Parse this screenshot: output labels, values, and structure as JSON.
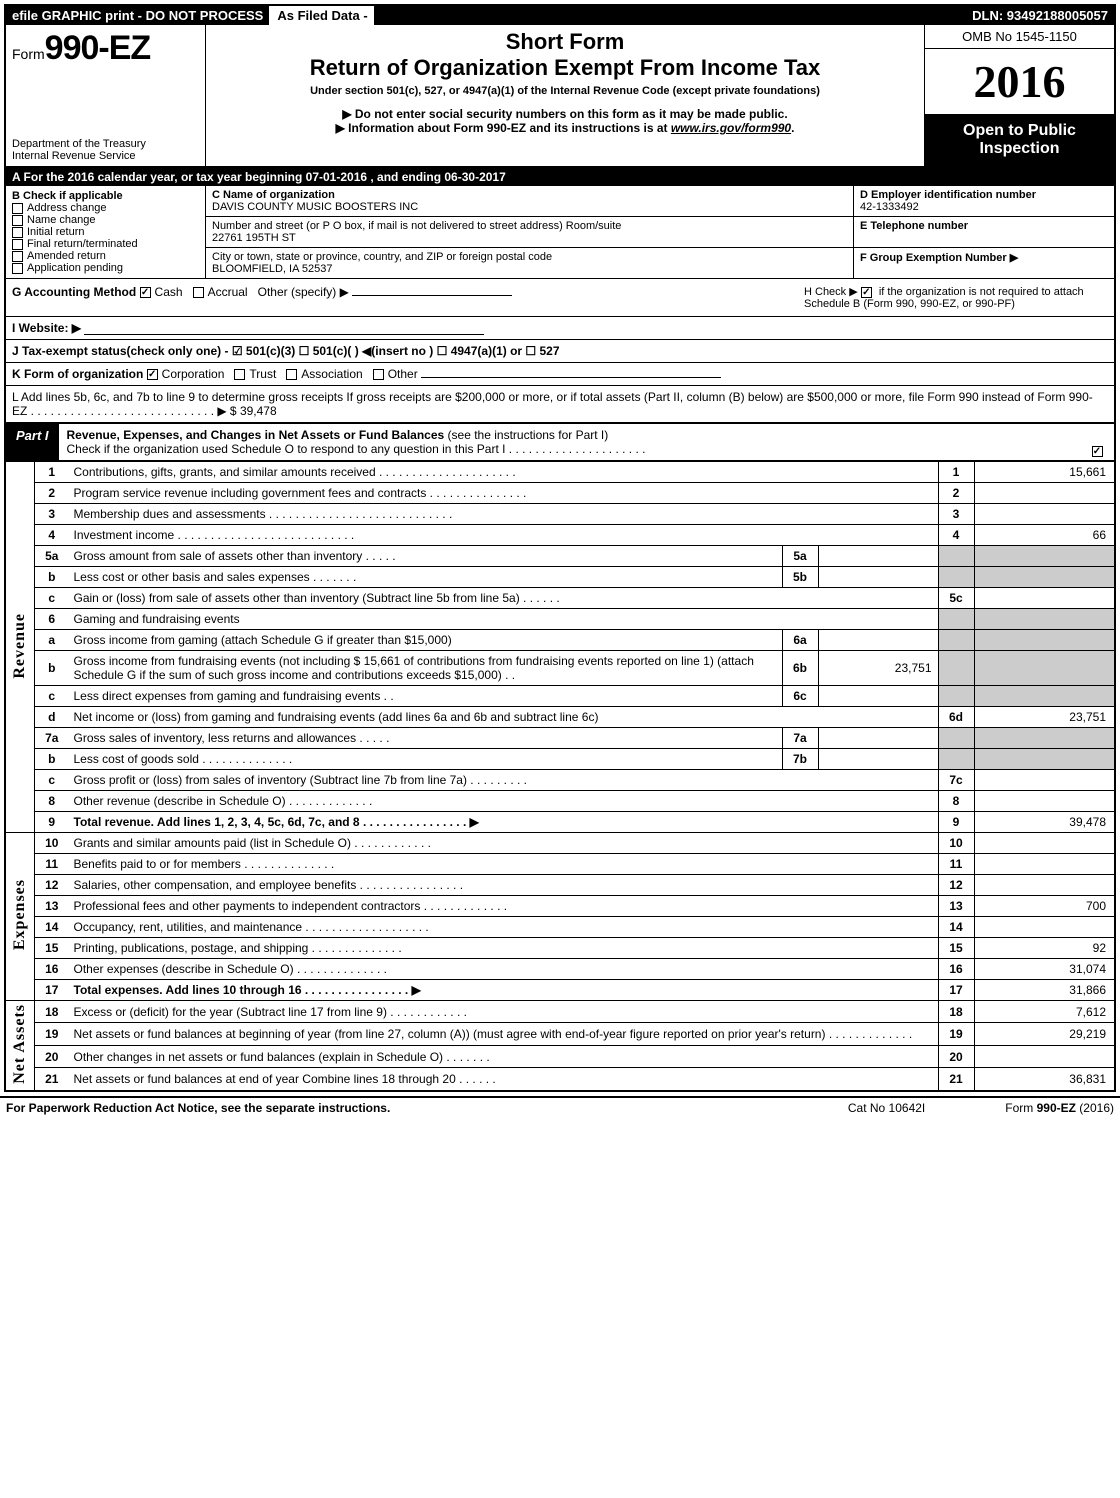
{
  "topbar": {
    "left": "efile GRAPHIC print - DO NOT PROCESS",
    "mid": "As Filed Data -",
    "right": "DLN: 93492188005057"
  },
  "header": {
    "form_prefix": "Form",
    "form_number": "990-EZ",
    "dept1": "Department of the Treasury",
    "dept2": "Internal Revenue Service",
    "short_form": "Short Form",
    "return_title": "Return of Organization Exempt From Income Tax",
    "under": "Under section 501(c), 527, or 4947(a)(1) of the Internal Revenue Code (except private foundations)",
    "note1": "▶ Do not enter social security numbers on this form as it may be made public.",
    "note2_prefix": "▶ Information about Form 990-EZ and its instructions is at ",
    "note2_link": "www.irs.gov/form990",
    "note2_suffix": ".",
    "omb": "OMB No 1545-1150",
    "year": "2016",
    "open": "Open to Public Inspection"
  },
  "rowA": "A  For the 2016 calendar year, or tax year beginning 07-01-2016            , and ending 06-30-2017",
  "colB": {
    "title": "B  Check if applicable",
    "items": [
      "Address change",
      "Name change",
      "Initial return",
      "Final return/terminated",
      "Amended return",
      "Application pending"
    ]
  },
  "colC": {
    "c_label": "C Name of organization",
    "c_name": "DAVIS COUNTY MUSIC BOOSTERS INC",
    "addr_label": "Number and street (or P  O  box, if mail is not delivered to street address)  Room/suite",
    "addr": "22761 195TH ST",
    "city_label": "City or town, state or province, country, and ZIP or foreign postal code",
    "city": "BLOOMFIELD, IA  52537"
  },
  "colD": {
    "d_label": "D Employer identification number",
    "ein": "42-1333492",
    "e_label": "E Telephone number",
    "f_label": "F Group Exemption Number   ▶"
  },
  "rowG": {
    "left_label": "G Accounting Method    ",
    "cash": "Cash",
    "accrual": "Accrual",
    "other": "Other (specify) ▶",
    "h_label": "H   Check ▶   ",
    "h_text": " if the organization is not required to attach Schedule B (Form 990, 990-EZ, or 990-PF)"
  },
  "rowI": "I Website: ▶",
  "rowJ": "J Tax-exempt status(check only one) -  ☑ 501(c)(3)    ☐ 501(c)(  ) ◀(insert no ) ☐ 4947(a)(1) or  ☐ 527",
  "rowK": {
    "label": "K Form of organization   ",
    "corp": "Corporation",
    "trust": "Trust",
    "assoc": "Association",
    "other": "Other"
  },
  "rowL": {
    "text": "L Add lines 5b, 6c, and 7b to line 9 to determine gross receipts  If gross receipts are $200,000 or more, or if total assets (Part II, column (B) below) are $500,000 or more, file Form 990 instead of Form 990-EZ  .  .  .  .  .  .  .  .  .  .  .  .  .  .  .  .  .  .  .  .  .  .  .  .  .  .  .  . ▶ $ ",
    "amt": "39,478"
  },
  "partI": {
    "tag": "Part I",
    "title": "Revenue, Expenses, and Changes in Net Assets or Fund Balances ",
    "sub": "(see the instructions for Part I)",
    "check_note": "Check if the organization used Schedule O to respond to any question in this Part I .  .  .  .  .  .  .  .  .  .  .  .  .  .  .  .  .  .  .  .  ."
  },
  "sections": {
    "revenue": "Revenue",
    "expenses": "Expenses",
    "netassets": "Net Assets"
  },
  "lines": [
    {
      "sec": "rev",
      "ln": "1",
      "desc": "Contributions, gifts, grants, and similar amounts received  .  .  .  .  .  .  .  .  .  .  .  .  .  .  .  .  .  .  .  .  .",
      "out": "1",
      "val": "15,661"
    },
    {
      "sec": "rev",
      "ln": "2",
      "desc": "Program service revenue including government fees and contracts  .  .  .  .  .  .  .  .  .  .  .  .  .  .  .",
      "out": "2",
      "val": ""
    },
    {
      "sec": "rev",
      "ln": "3",
      "desc": "Membership dues and assessments  .  .  .  .  .  .  .  .  .  .  .  .  .  .  .  .  .  .  .  .  .  .  .  .  .  .  .  .",
      "out": "3",
      "val": ""
    },
    {
      "sec": "rev",
      "ln": "4",
      "desc": "Investment income  .  .  .  .  .  .  .  .  .  .  .  .  .  .  .  .  .  .  .  .  .  .  .  .  .  .  .",
      "out": "4",
      "val": "66"
    },
    {
      "sec": "rev",
      "ln": "5a",
      "desc": "Gross amount from sale of assets other than inventory  .  .  .  .  .",
      "in": "5a",
      "inval": "",
      "grey": true
    },
    {
      "sec": "rev",
      "ln": "b",
      "desc": "Less  cost or other basis and sales expenses  .  .  .  .  .  .  .",
      "in": "5b",
      "inval": "",
      "grey": true
    },
    {
      "sec": "rev",
      "ln": "c",
      "desc": "Gain or (loss) from sale of assets other than inventory (Subtract line 5b from line 5a) .  .  .  .  .  .",
      "out": "5c",
      "val": ""
    },
    {
      "sec": "rev",
      "ln": "6",
      "desc": "Gaming and fundraising events",
      "grey": true
    },
    {
      "sec": "rev",
      "ln": "a",
      "desc": "Gross income from gaming (attach Schedule G if greater than $15,000)",
      "in": "6a",
      "inval": "",
      "grey": true
    },
    {
      "sec": "rev",
      "ln": "b",
      "desc": "Gross income from fundraising events (not including $  15,661                of contributions from fundraising events reported on line 1) (attach Schedule G if the sum of such gross income and contributions exceeds $15,000)     .   .",
      "in": "6b",
      "inval": "23,751",
      "grey": true
    },
    {
      "sec": "rev",
      "ln": "c",
      "desc": "Less  direct expenses from gaming and fundraising events       .   .",
      "in": "6c",
      "inval": "",
      "grey": true
    },
    {
      "sec": "rev",
      "ln": "d",
      "desc": "Net income or (loss) from gaming and fundraising events (add lines 6a and 6b and subtract line 6c)",
      "out": "6d",
      "val": "23,751"
    },
    {
      "sec": "rev",
      "ln": "7a",
      "desc": "Gross sales of inventory, less returns and allowances  .  .  .  .  .",
      "in": "7a",
      "inval": "",
      "grey": true
    },
    {
      "sec": "rev",
      "ln": "b",
      "desc": "Less  cost of goods sold           .  .  .  .  .  .  .  .  .  .  .  .  .  .",
      "in": "7b",
      "inval": "",
      "grey": true
    },
    {
      "sec": "rev",
      "ln": "c",
      "desc": "Gross profit or (loss) from sales of inventory (Subtract line 7b from line 7a) .  .  .  .  .  .  .  .  .",
      "out": "7c",
      "val": ""
    },
    {
      "sec": "rev",
      "ln": "8",
      "desc": "Other revenue (describe in Schedule O)                              .  .  .  .  .  .  .  .  .  .  .  .  .",
      "out": "8",
      "val": ""
    },
    {
      "sec": "rev",
      "ln": "9",
      "desc": "Total revenue. Add lines 1, 2, 3, 4, 5c, 6d, 7c, and 8  .  .  .  .  .  .  .  .  .  .  .  .  .  .  .  .   ▶",
      "out": "9",
      "val": "39,478",
      "bold": true
    },
    {
      "sec": "exp",
      "ln": "10",
      "desc": "Grants and similar amounts paid (list in Schedule O)            .  .  .  .  .  .  .  .  .  .  .  .",
      "out": "10",
      "val": ""
    },
    {
      "sec": "exp",
      "ln": "11",
      "desc": "Benefits paid to or for members                           .  .  .  .  .  .  .  .  .  .  .  .  .  .",
      "out": "11",
      "val": ""
    },
    {
      "sec": "exp",
      "ln": "12",
      "desc": "Salaries, other compensation, and employee benefits  .  .  .  .  .  .  .  .  .  .  .  .  .  .  .  .",
      "out": "12",
      "val": ""
    },
    {
      "sec": "exp",
      "ln": "13",
      "desc": "Professional fees and other payments to independent contractors   .  .  .  .  .  .  .  .  .  .  .  .  .",
      "out": "13",
      "val": "700"
    },
    {
      "sec": "exp",
      "ln": "14",
      "desc": "Occupancy, rent, utilities, and maintenance  .  .  .  .  .  .  .  .  .  .  .  .  .  .  .  .  .  .  .",
      "out": "14",
      "val": ""
    },
    {
      "sec": "exp",
      "ln": "15",
      "desc": "Printing, publications, postage, and shipping              .  .  .  .  .  .  .  .  .  .  .  .  .  .",
      "out": "15",
      "val": "92"
    },
    {
      "sec": "exp",
      "ln": "16",
      "desc": "Other expenses (describe in Schedule O)                  .  .  .  .  .  .  .  .  .  .  .  .  .  .",
      "out": "16",
      "val": "31,074"
    },
    {
      "sec": "exp",
      "ln": "17",
      "desc": "Total expenses. Add lines 10 through 16         .  .  .  .  .  .  .  .  .  .  .  .  .  .  .  .   ▶",
      "out": "17",
      "val": "31,866",
      "bold": true
    },
    {
      "sec": "net",
      "ln": "18",
      "desc": "Excess or (deficit) for the year (Subtract line 17 from line 9)       .  .  .  .  .  .  .  .  .  .  .  .",
      "out": "18",
      "val": "7,612"
    },
    {
      "sec": "net",
      "ln": "19",
      "desc": "Net assets or fund balances at beginning of year (from line 27, column (A)) (must agree with end-of-year figure reported on prior year's return)                  .  .  .  .  .  .  .  .  .  .  .  .  .",
      "out": "19",
      "val": "29,219"
    },
    {
      "sec": "net",
      "ln": "20",
      "desc": "Other changes in net assets or fund balances (explain in Schedule O)     .  .  .  .  .  .  .",
      "out": "20",
      "val": ""
    },
    {
      "sec": "net",
      "ln": "21",
      "desc": "Net assets or fund balances at end of year  Combine lines 18 through 20          .  .  .  .  .  .",
      "out": "21",
      "val": "36,831"
    }
  ],
  "footer": {
    "left": "For Paperwork Reduction Act Notice, see the separate instructions.",
    "mid": "Cat No  10642I",
    "right": "Form 990-EZ (2016)"
  }
}
